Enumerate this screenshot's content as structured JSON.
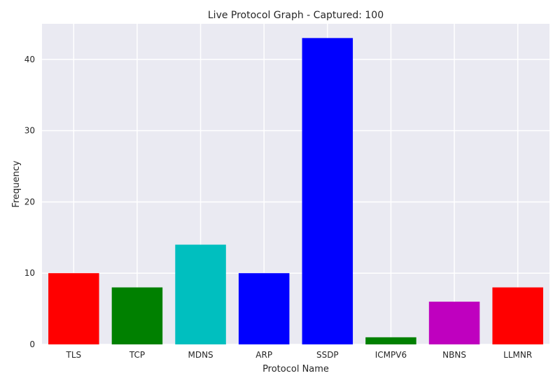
{
  "chart_data": {
    "type": "bar",
    "title": "Live Protocol Graph - Captured: 100",
    "xlabel": "Protocol Name",
    "ylabel": "Frequency",
    "categories": [
      "TLS",
      "TCP",
      "MDNS",
      "ARP",
      "SSDP",
      "ICMPV6",
      "NBNS",
      "LLMNR"
    ],
    "values": [
      10,
      8,
      14,
      10,
      43,
      1,
      6,
      8
    ],
    "colors": [
      "#ff0000",
      "#008000",
      "#00bfbf",
      "#0000ff",
      "#0000ff",
      "#008000",
      "#bf00bf",
      "#ff0000"
    ],
    "ylim": [
      0,
      45
    ],
    "yticks": [
      0,
      10,
      20,
      30,
      40
    ],
    "grid": true,
    "background": "#eaeaf2"
  }
}
